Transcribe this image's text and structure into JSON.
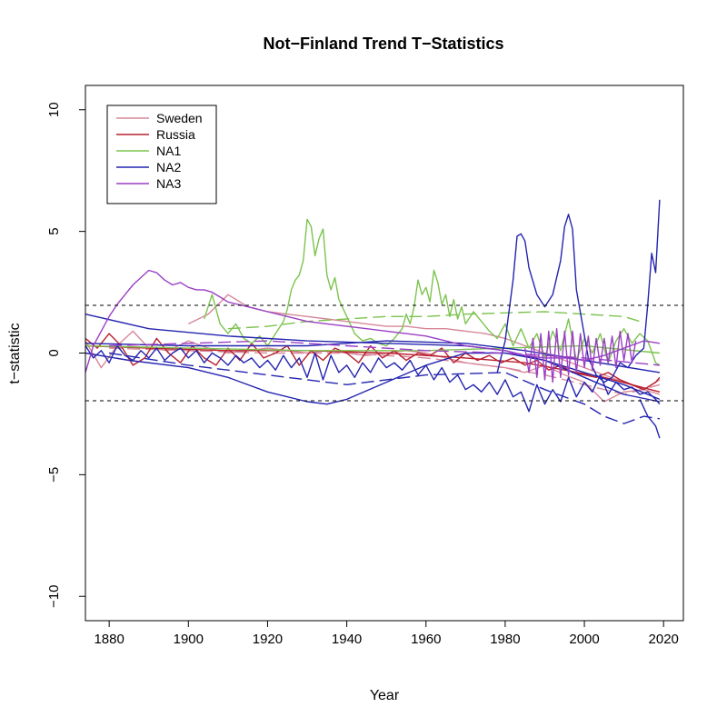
{
  "chart_data": {
    "type": "line",
    "title": "Not−Finland Trend T−Statistics",
    "xlabel": "Year",
    "ylabel": "t−statistic",
    "xlim": [
      1874,
      2025
    ],
    "ylim": [
      -11,
      11
    ],
    "xticks": [
      1880,
      1900,
      1920,
      1940,
      1960,
      1980,
      2000,
      2020
    ],
    "yticks": [
      -10,
      -5,
      0,
      5,
      10
    ],
    "ytick_labels": [
      "−10",
      "−5",
      "0",
      "5",
      "10"
    ],
    "reference_lines": [
      1.96,
      -1.96
    ],
    "reference_line_style": "dashed",
    "grid": false,
    "legend_position": "top-left",
    "legend": [
      "Sweden",
      "Russia",
      "NA1",
      "NA2",
      "NA3"
    ],
    "colors": {
      "Sweden": "#d6879a",
      "Russia": "#b8202e",
      "NA1": "#7cc34e",
      "NA2": "#2424b0",
      "NA3": "#9a3fc4"
    },
    "series": [
      {
        "name": "Sweden",
        "color": "#d6879a",
        "dash": "solid",
        "x": [
          1874,
          1878,
          1882,
          1886,
          1890,
          1895,
          1900,
          1905,
          1910,
          1915,
          1920,
          1925,
          1930,
          1935,
          1940,
          1945,
          1950,
          1955,
          1960,
          1965,
          1970,
          1975,
          1980,
          1985,
          1990,
          1995,
          2000,
          2005,
          2010,
          2015,
          2019
        ],
        "y": [
          0.5,
          -0.6,
          0.3,
          0.9,
          0.2,
          0.1,
          0.5,
          0.2,
          0.0,
          0.1,
          0.2,
          0.1,
          0.0,
          0.1,
          0.0,
          -0.1,
          0.0,
          0.1,
          0.0,
          -0.2,
          -0.4,
          -0.5,
          -0.6,
          -0.8,
          -0.5,
          -0.9,
          -1.2,
          -2.0,
          -1.6,
          -1.5,
          -1.1
        ]
      },
      {
        "name": "Sweden",
        "color": "#d6879a",
        "dash": "solid",
        "x": [
          1900,
          1905,
          1910,
          1915,
          1920,
          1925,
          1930,
          1935,
          1940,
          1945,
          1950,
          1955,
          1960,
          1965,
          1970,
          1975,
          1980,
          1985,
          1990,
          1995,
          2000,
          2005,
          2010,
          2015,
          2019
        ],
        "y": [
          1.2,
          1.6,
          2.4,
          1.9,
          1.7,
          1.6,
          1.5,
          1.4,
          1.3,
          1.2,
          1.1,
          1.1,
          1.0,
          1.0,
          0.9,
          0.8,
          0.6,
          0.3,
          0.0,
          -0.3,
          -0.6,
          -0.9,
          -1.2,
          -1.5,
          -1.7
        ]
      },
      {
        "name": "Sweden",
        "color": "#d6879a",
        "dash": "dashed",
        "x": [
          1880,
          1900,
          1920,
          1940,
          1960,
          1980,
          1990,
          2000,
          2010,
          2019
        ],
        "y": [
          0.2,
          0.1,
          0.0,
          0.0,
          -0.2,
          -0.6,
          -0.9,
          -1.3,
          -1.7,
          -1.3
        ]
      },
      {
        "name": "Russia",
        "color": "#b8202e",
        "dash": "solid",
        "x": [
          1874,
          1877,
          1880,
          1883,
          1886,
          1889,
          1892,
          1895,
          1898,
          1901,
          1904,
          1907,
          1910,
          1913,
          1916,
          1919,
          1922,
          1925,
          1928,
          1931,
          1934,
          1937,
          1940,
          1943,
          1946,
          1949,
          1952,
          1955,
          1958,
          1961,
          1964,
          1967,
          1970,
          1973,
          1976,
          1979,
          1982,
          1985,
          1988,
          1991,
          1994,
          1997,
          2000,
          2003,
          2006,
          2009,
          2012,
          2015,
          2018,
          2019
        ],
        "y": [
          0.6,
          0.2,
          0.8,
          0.3,
          -0.5,
          -0.2,
          0.6,
          0.0,
          -0.4,
          0.3,
          -0.2,
          -0.5,
          0.2,
          -0.3,
          0.4,
          -0.2,
          0.0,
          0.3,
          -0.5,
          0.1,
          -0.3,
          0.2,
          0.0,
          -0.4,
          0.3,
          -0.2,
          0.1,
          -0.3,
          0.0,
          -0.1,
          0.2,
          -0.4,
          0.0,
          -0.3,
          -0.1,
          -0.4,
          -0.2,
          -0.5,
          -0.3,
          -0.7,
          -0.5,
          -0.8,
          -0.9,
          -1.0,
          -0.8,
          -1.1,
          -1.3,
          -1.5,
          -1.2,
          -1.0
        ]
      },
      {
        "name": "Russia",
        "color": "#b8202e",
        "dash": "solid",
        "x": [
          1874,
          1890,
          1910,
          1930,
          1950,
          1970,
          1985,
          1995,
          2005,
          2012,
          2019
        ],
        "y": [
          0.3,
          0.2,
          0.1,
          0.1,
          0.0,
          -0.2,
          -0.4,
          -0.7,
          -1.0,
          -1.3,
          -1.6
        ]
      },
      {
        "name": "NA1",
        "color": "#7cc34e",
        "dash": "solid",
        "x": [
          1904,
          1906,
          1908,
          1910,
          1912,
          1914,
          1916,
          1918,
          1920,
          1922,
          1924,
          1925,
          1926,
          1927,
          1928,
          1929,
          1930,
          1931,
          1932,
          1933,
          1934,
          1935,
          1936,
          1937,
          1938,
          1940,
          1942,
          1944,
          1946,
          1948,
          1950,
          1952,
          1954,
          1955,
          1956,
          1957,
          1958,
          1959,
          1960,
          1961,
          1962,
          1963,
          1964,
          1965,
          1966,
          1967,
          1968,
          1969,
          1970,
          1972,
          1974,
          1976,
          1978,
          1980,
          1982,
          1984,
          1986,
          1988,
          1990,
          1992,
          1994,
          1996,
          1998,
          2000,
          2002,
          2004,
          2006,
          2008,
          2010,
          2012,
          2014,
          2016,
          2018,
          2019
        ],
        "y": [
          1.4,
          2.4,
          1.2,
          0.8,
          1.2,
          0.6,
          0.4,
          0.7,
          0.3,
          0.8,
          1.3,
          1.8,
          2.6,
          3.0,
          3.2,
          3.8,
          5.5,
          5.2,
          4.0,
          4.7,
          5.1,
          3.2,
          2.6,
          3.1,
          2.2,
          1.5,
          0.8,
          0.5,
          0.6,
          0.4,
          0.3,
          0.6,
          1.0,
          1.6,
          1.2,
          1.9,
          3.0,
          2.4,
          2.7,
          2.1,
          3.4,
          2.9,
          2.0,
          2.4,
          1.5,
          2.2,
          1.4,
          1.9,
          1.2,
          1.7,
          1.3,
          0.9,
          0.6,
          1.2,
          0.3,
          1.0,
          0.2,
          0.8,
          -0.2,
          0.9,
          0.1,
          1.4,
          -0.3,
          0.6,
          0.0,
          0.8,
          -0.4,
          0.5,
          1.0,
          0.4,
          0.8,
          0.5,
          -0.4,
          -0.5
        ]
      },
      {
        "name": "NA1",
        "color": "#7cc34e",
        "dash": "dashed",
        "x": [
          1910,
          1920,
          1930,
          1940,
          1950,
          1960,
          1970,
          1980,
          1990,
          2000,
          2010,
          2014
        ],
        "y": [
          1.0,
          1.1,
          1.3,
          1.4,
          1.5,
          1.5,
          1.6,
          1.65,
          1.7,
          1.6,
          1.5,
          1.3
        ]
      },
      {
        "name": "NA1",
        "color": "#7cc34e",
        "dash": "solid",
        "x": [
          1874,
          1900,
          1930,
          1960,
          1980,
          2000,
          2019
        ],
        "y": [
          0.3,
          0.2,
          0.1,
          0.1,
          0.2,
          0.3,
          0.0
        ]
      },
      {
        "name": "NA2",
        "color": "#2424b0",
        "dash": "solid",
        "x": [
          1874,
          1890,
          1910,
          1930,
          1950,
          1970,
          1980,
          1990,
          2000,
          2010,
          2019
        ],
        "y": [
          1.6,
          1.0,
          0.7,
          0.5,
          0.4,
          0.3,
          0.1,
          -0.3,
          -0.8,
          -1.3,
          -1.9
        ]
      },
      {
        "name": "NA2",
        "color": "#2424b0",
        "dash": "solid",
        "x": [
          1874,
          1885,
          1900,
          1910,
          1920,
          1930,
          1935,
          1940,
          1950,
          1960,
          1970,
          1980,
          1990,
          2000,
          2010,
          2019
        ],
        "y": [
          0.0,
          -0.3,
          -0.6,
          -1.0,
          -1.6,
          -2.0,
          -2.1,
          -1.9,
          -1.2,
          -0.5,
          0.0,
          0.0,
          -0.3,
          -1.0,
          -1.7,
          -2.0
        ]
      },
      {
        "name": "NA2",
        "color": "#2424b0",
        "dash": "solid",
        "x": [
          1874,
          1900,
          1930,
          1950,
          1970,
          1985,
          2000,
          2019
        ],
        "y": [
          0.4,
          0.3,
          0.3,
          0.5,
          0.4,
          0.1,
          -0.3,
          -0.8
        ]
      },
      {
        "name": "NA2",
        "color": "#2424b0",
        "dash": "solid",
        "x": [
          1874,
          1876,
          1878,
          1880,
          1882,
          1884,
          1886,
          1888,
          1890,
          1892,
          1894,
          1896,
          1898,
          1900,
          1902,
          1904,
          1906,
          1908,
          1910,
          1912,
          1914,
          1916,
          1918,
          1920,
          1922,
          1924,
          1926,
          1928,
          1930,
          1932,
          1934,
          1936,
          1938,
          1940,
          1942,
          1944,
          1946,
          1948,
          1950,
          1952,
          1954,
          1956,
          1958,
          1960,
          1962,
          1964,
          1966,
          1968,
          1970,
          1972,
          1974,
          1976,
          1978,
          1980,
          1982,
          1984,
          1986,
          1988,
          1990,
          1992,
          1994,
          1996,
          1998,
          2000,
          2002,
          2004,
          2006,
          2008,
          2010,
          2012,
          2014,
          2016,
          2018,
          2019
        ],
        "y": [
          0.3,
          -0.2,
          0.1,
          -0.4,
          0.3,
          -0.1,
          -0.3,
          0.1,
          -0.2,
          0.2,
          -0.3,
          0.0,
          0.2,
          -0.2,
          0.1,
          -0.4,
          0.0,
          -0.2,
          -0.5,
          -0.1,
          -0.4,
          -0.2,
          -0.6,
          -0.3,
          -0.7,
          -0.1,
          -0.6,
          -0.2,
          -1.0,
          0.0,
          -1.1,
          -0.1,
          -0.8,
          -0.5,
          -1.0,
          -0.4,
          -0.8,
          -0.2,
          -0.6,
          -0.4,
          -0.7,
          -0.3,
          -0.9,
          -0.5,
          -1.1,
          -0.6,
          -1.2,
          -0.9,
          -1.5,
          -1.3,
          -1.6,
          -1.2,
          -1.7,
          -1.1,
          -1.8,
          -1.6,
          -2.4,
          -1.3,
          -2.1,
          -1.5,
          -2.0,
          -1.0,
          -1.8,
          -1.2,
          -1.6,
          -0.9,
          -1.7,
          -1.2,
          -1.5,
          -1.4,
          -1.7,
          -1.6,
          -1.9,
          -2.1
        ]
      },
      {
        "name": "NA2",
        "color": "#2424b0",
        "dash": "dashed",
        "x": [
          1880,
          1900,
          1920,
          1940,
          1960,
          1980,
          1990,
          2000,
          2005,
          2010,
          2015,
          2019
        ],
        "y": [
          0.0,
          -0.5,
          -0.9,
          -1.3,
          -0.9,
          -0.8,
          -1.5,
          -2.1,
          -2.6,
          -2.9,
          -2.6,
          -2.7
        ]
      },
      {
        "name": "NA2",
        "color": "#2424b0",
        "dash": "solid",
        "x": [
          1978,
          1980,
          1982,
          1983,
          1984,
          1985,
          1986,
          1988,
          1990,
          1992,
          1994,
          1995,
          1996,
          1997,
          1998,
          2001,
          2003,
          2005,
          2007,
          2009,
          2011,
          2013,
          2015,
          2016,
          2017,
          2018,
          2019
        ],
        "y": [
          -0.8,
          0.5,
          3.0,
          4.8,
          4.9,
          4.6,
          3.5,
          2.4,
          1.9,
          2.4,
          3.8,
          5.2,
          5.7,
          5.1,
          2.6,
          -0.2,
          -0.9,
          -1.2,
          -1.0,
          -0.4,
          -0.6,
          -0.1,
          0.2,
          2.0,
          4.1,
          3.3,
          6.3
        ]
      },
      {
        "name": "NA2",
        "color": "#2424b0",
        "dash": "solid",
        "x": [
          2014,
          2016,
          2018,
          2019
        ],
        "y": [
          -1.9,
          -2.6,
          -3.0,
          -3.5
        ]
      },
      {
        "name": "NA3",
        "color": "#9a3fc4",
        "dash": "solid",
        "x": [
          1874,
          1876,
          1878,
          1880,
          1882,
          1884,
          1886,
          1888,
          1890,
          1892,
          1894,
          1896,
          1898,
          1900,
          1902,
          1904,
          1906,
          1908,
          1910,
          1915,
          1920,
          1925,
          1930,
          1935,
          1940,
          1945,
          1950,
          1955,
          1960,
          1965,
          1970,
          1975,
          1980,
          1985,
          1990,
          1995,
          2000,
          2005,
          2010,
          2015,
          2019
        ],
        "y": [
          -0.8,
          0.3,
          0.9,
          1.5,
          2.0,
          2.4,
          2.8,
          3.1,
          3.4,
          3.3,
          3.0,
          2.8,
          2.9,
          2.7,
          2.6,
          2.6,
          2.5,
          2.3,
          2.1,
          1.9,
          1.7,
          1.5,
          1.3,
          1.2,
          1.1,
          1.0,
          0.9,
          0.8,
          0.7,
          0.5,
          0.3,
          0.2,
          0.1,
          -0.1,
          -0.2,
          -0.2,
          -0.3,
          -0.1,
          0.2,
          0.5,
          0.4
        ]
      },
      {
        "name": "NA3",
        "color": "#9a3fc4",
        "dash": "solid",
        "x": [
          1985,
          1986,
          1987,
          1988,
          1989,
          1990,
          1991,
          1992,
          1993,
          1994,
          1995,
          1996,
          1997,
          1998,
          1999,
          2000,
          2001,
          2002,
          2003,
          2004,
          2005,
          2006,
          2007,
          2008,
          2009,
          2010,
          2011,
          2012,
          2013
        ],
        "y": [
          0.2,
          -0.8,
          0.6,
          -1.0,
          0.8,
          -1.1,
          0.9,
          -1.2,
          1.0,
          -1.0,
          0.9,
          -0.9,
          0.9,
          -0.8,
          0.8,
          -0.6,
          0.7,
          -0.7,
          0.6,
          -0.5,
          0.6,
          -0.4,
          0.7,
          -0.6,
          0.9,
          -0.3,
          0.8,
          -0.4,
          0.5
        ]
      },
      {
        "name": "NA3",
        "color": "#9a3fc4",
        "dash": "dashed",
        "x": [
          1880,
          1900,
          1920,
          1940,
          1960,
          1980,
          2000,
          2019
        ],
        "y": [
          0.3,
          0.4,
          0.5,
          0.3,
          0.1,
          0.0,
          -0.2,
          -0.5
        ]
      }
    ]
  }
}
